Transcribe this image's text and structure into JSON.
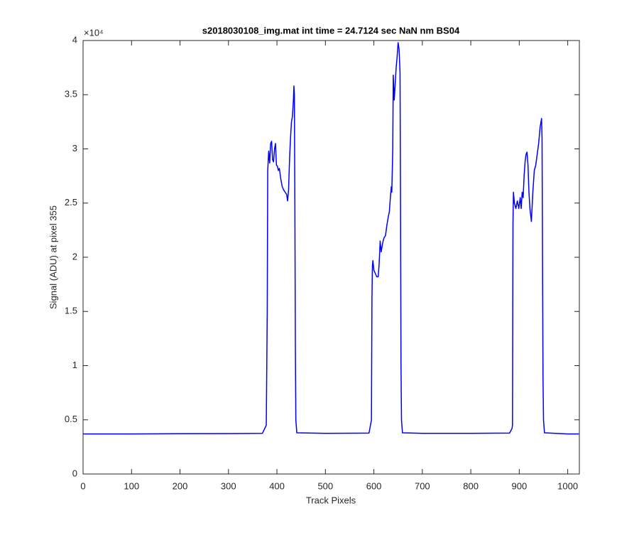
{
  "chart_data": {
    "type": "line",
    "title": "s2018030108_img.mat int time = 24.7124 sec  NaN nm BS04",
    "x_label": "Track Pixels",
    "y_label": "Signal (ADU) at pixel 355",
    "y_exponent_label": "×10⁴",
    "xlim": [
      0,
      1024
    ],
    "xticks": [
      0,
      100,
      200,
      300,
      400,
      500,
      600,
      700,
      800,
      900,
      1000
    ],
    "ylim": [
      0,
      4
    ],
    "yticks": [
      0,
      0.5,
      1,
      1.5,
      2,
      2.5,
      3,
      3.5,
      4
    ],
    "grid": false,
    "x": [
      0,
      100,
      200,
      300,
      370,
      378,
      380,
      381,
      383,
      385,
      387,
      389,
      391,
      393,
      395,
      397,
      399,
      401,
      403,
      405,
      408,
      411,
      414,
      417,
      420,
      422,
      424,
      426,
      428,
      430,
      432,
      434,
      435,
      436,
      437,
      438,
      439,
      441,
      500,
      590,
      595,
      596,
      597,
      598,
      600,
      603,
      606,
      609,
      611,
      613,
      615,
      617,
      619,
      621,
      624,
      627,
      630,
      632,
      634,
      636,
      637,
      639,
      640,
      642,
      644,
      646,
      648,
      650,
      652,
      654,
      655,
      656,
      657,
      659,
      700,
      800,
      880,
      885,
      886,
      887,
      888,
      890,
      893,
      896,
      899,
      902,
      904,
      906,
      908,
      910,
      912,
      914,
      916,
      918,
      920,
      922,
      925,
      928,
      931,
      934,
      937,
      940,
      943,
      946,
      947,
      948,
      949,
      950,
      952,
      1000,
      1023
    ],
    "series": [
      {
        "name": "signal",
        "color": "#0000ff",
        "values": [
          0.37,
          0.37,
          0.372,
          0.373,
          0.375,
          0.45,
          1.5,
          2.8,
          2.98,
          2.87,
          3.05,
          3.07,
          2.9,
          2.88,
          3.0,
          3.05,
          2.85,
          2.84,
          2.8,
          2.82,
          2.72,
          2.65,
          2.62,
          2.6,
          2.58,
          2.52,
          2.62,
          2.9,
          3.1,
          3.25,
          3.3,
          3.45,
          3.58,
          3.5,
          2.5,
          1.2,
          0.5,
          0.38,
          0.375,
          0.378,
          0.5,
          1.6,
          1.92,
          1.97,
          1.88,
          1.85,
          1.82,
          1.82,
          1.95,
          2.15,
          2.05,
          2.1,
          2.15,
          2.18,
          2.2,
          2.3,
          2.38,
          2.42,
          2.55,
          2.65,
          2.6,
          3.0,
          3.68,
          3.45,
          3.6,
          3.75,
          3.85,
          3.98,
          3.92,
          3.7,
          2.5,
          1.0,
          0.5,
          0.38,
          0.375,
          0.375,
          0.378,
          0.42,
          0.45,
          2.3,
          2.6,
          2.5,
          2.45,
          2.52,
          2.45,
          2.55,
          2.45,
          2.6,
          2.55,
          2.75,
          2.88,
          2.95,
          2.97,
          2.85,
          2.6,
          2.45,
          2.33,
          2.6,
          2.8,
          2.85,
          2.95,
          3.05,
          3.2,
          3.28,
          3.1,
          2.0,
          0.9,
          0.5,
          0.38,
          0.37,
          0.37
        ]
      }
    ]
  }
}
